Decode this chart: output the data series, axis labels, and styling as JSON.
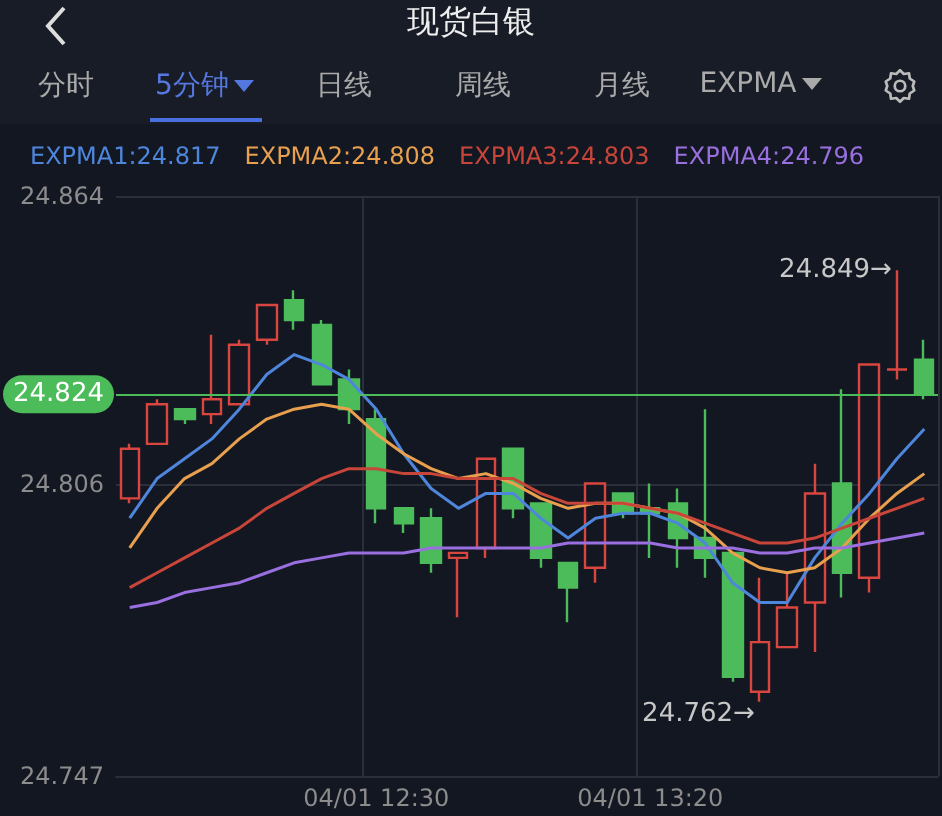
{
  "chart_data": {
    "type": "candlestick",
    "title": "现货白银",
    "annotations": [
      "分时",
      "5分钟",
      "日线",
      "周线",
      "月线",
      "EXPMA",
      "24.849→",
      "24.762→"
    ],
    "categories": [
      null,
      null,
      null,
      null,
      null,
      null,
      null,
      null,
      null,
      "04/01 12:30",
      null,
      null,
      null,
      null,
      null,
      null,
      null,
      null,
      null,
      "04/01 13:20",
      null,
      null,
      null,
      null,
      null,
      null,
      null,
      null,
      null,
      null
    ],
    "ohlc": [
      [
        24.803,
        24.814,
        24.802,
        24.813
      ],
      [
        24.814,
        24.823,
        24.814,
        24.822
      ],
      [
        24.821,
        24.821,
        24.818,
        24.819
      ],
      [
        24.82,
        24.836,
        24.818,
        24.823
      ],
      [
        24.822,
        24.835,
        24.822,
        24.834
      ],
      [
        24.835,
        24.842,
        24.834,
        24.842
      ],
      [
        24.843,
        24.845,
        24.837,
        24.839
      ],
      [
        24.838,
        24.839,
        24.826,
        24.826
      ],
      [
        24.827,
        24.829,
        24.818,
        24.821
      ],
      [
        24.819,
        24.821,
        24.798,
        24.801
      ],
      [
        24.801,
        24.801,
        24.796,
        24.798
      ],
      [
        24.799,
        24.801,
        24.788,
        24.79
      ],
      [
        24.791,
        24.792,
        24.779,
        24.792
      ],
      [
        24.793,
        24.811,
        24.791,
        24.811
      ],
      [
        24.813,
        24.813,
        24.799,
        24.801
      ],
      [
        24.802,
        24.802,
        24.789,
        24.791
      ],
      [
        24.79,
        24.79,
        24.778,
        24.785
      ],
      [
        24.789,
        24.806,
        24.786,
        24.806
      ],
      [
        24.804,
        24.804,
        24.799,
        24.8
      ],
      [
        24.801,
        24.806,
        24.791,
        24.8
      ],
      [
        24.802,
        24.805,
        24.789,
        24.795
      ],
      [
        24.795,
        24.821,
        24.787,
        24.791
      ],
      [
        24.792,
        24.792,
        24.766,
        24.767
      ],
      [
        24.764,
        24.787,
        24.762,
        24.774
      ],
      [
        24.773,
        24.788,
        24.773,
        24.781
      ],
      [
        24.782,
        24.81,
        24.772,
        24.804
      ],
      [
        24.806,
        24.825,
        24.783,
        24.788
      ],
      [
        24.787,
        24.83,
        24.784,
        24.83
      ],
      [
        24.829,
        24.849,
        24.827,
        24.829
      ],
      [
        24.831,
        24.835,
        24.823,
        24.824
      ]
    ],
    "colors": [
      "#d9453f",
      "#d9453f",
      "#4cbb5a",
      "#d9453f",
      "#d9453f",
      "#d9453f",
      "#4cbb5a",
      "#4cbb5a",
      "#4cbb5a",
      "#4cbb5a",
      "#4cbb5a",
      "#4cbb5a",
      "#d9453f",
      "#d9453f",
      "#4cbb5a",
      "#4cbb5a",
      "#4cbb5a",
      "#d9453f",
      "#4cbb5a",
      "#4cbb5a",
      "#4cbb5a",
      "#4cbb5a",
      "#4cbb5a",
      "#d9453f",
      "#d9453f",
      "#d9453f",
      "#4cbb5a",
      "#d9453f",
      "#d9453f",
      "#4cbb5a"
    ],
    "series": [
      {
        "type": "line",
        "name": "EXPMA1:24.817",
        "color": "#4e86dc",
        "values": [
          24.799,
          24.807,
          24.811,
          24.815,
          24.821,
          24.828,
          24.832,
          24.83,
          24.827,
          24.821,
          24.812,
          24.805,
          24.801,
          24.804,
          24.804,
          24.799,
          24.795,
          24.799,
          24.8,
          24.8,
          24.798,
          24.794,
          24.786,
          24.782,
          24.782,
          24.791,
          24.798,
          24.804,
          24.811,
          24.817
        ]
      },
      {
        "type": "line",
        "name": "EXPMA2:24.808",
        "color": "#e8a04f",
        "values": [
          24.793,
          24.801,
          24.807,
          24.81,
          24.815,
          24.819,
          24.821,
          24.822,
          24.821,
          24.816,
          24.812,
          24.809,
          24.807,
          24.808,
          24.806,
          24.803,
          24.801,
          24.802,
          24.802,
          24.801,
          24.8,
          24.797,
          24.792,
          24.789,
          24.788,
          24.789,
          24.793,
          24.799,
          24.804,
          24.808
        ]
      },
      {
        "type": "line",
        "name": "EXPMA3:24.803",
        "color": "#c8453a",
        "values": [
          24.785,
          24.788,
          24.791,
          24.794,
          24.797,
          24.801,
          24.804,
          24.807,
          24.809,
          24.809,
          24.808,
          24.808,
          24.807,
          24.807,
          24.807,
          24.804,
          24.802,
          24.802,
          24.802,
          24.801,
          24.8,
          24.798,
          24.796,
          24.794,
          24.794,
          24.795,
          24.797,
          24.799,
          24.801,
          24.803
        ]
      },
      {
        "type": "line",
        "name": "EXPMA4:24.796",
        "color": "#9a6fe0",
        "values": [
          24.781,
          24.782,
          24.784,
          24.785,
          24.786,
          24.788,
          24.79,
          24.791,
          24.792,
          24.792,
          24.792,
          24.793,
          24.793,
          24.793,
          24.793,
          24.793,
          24.794,
          24.794,
          24.794,
          24.794,
          24.793,
          24.793,
          24.793,
          24.792,
          24.792,
          24.793,
          24.793,
          24.794,
          24.795,
          24.796
        ]
      }
    ],
    "ylim": [
      24.747,
      24.864
    ],
    "yticks": [
      24.747,
      24.806,
      24.864
    ],
    "ref_lines": [
      {
        "axis": "y",
        "value": 24.824,
        "label": "24.824",
        "color": "#4cbb5a"
      }
    ],
    "grid": true,
    "legend": "top left",
    "marker": "none",
    "line_style": "solid"
  }
}
